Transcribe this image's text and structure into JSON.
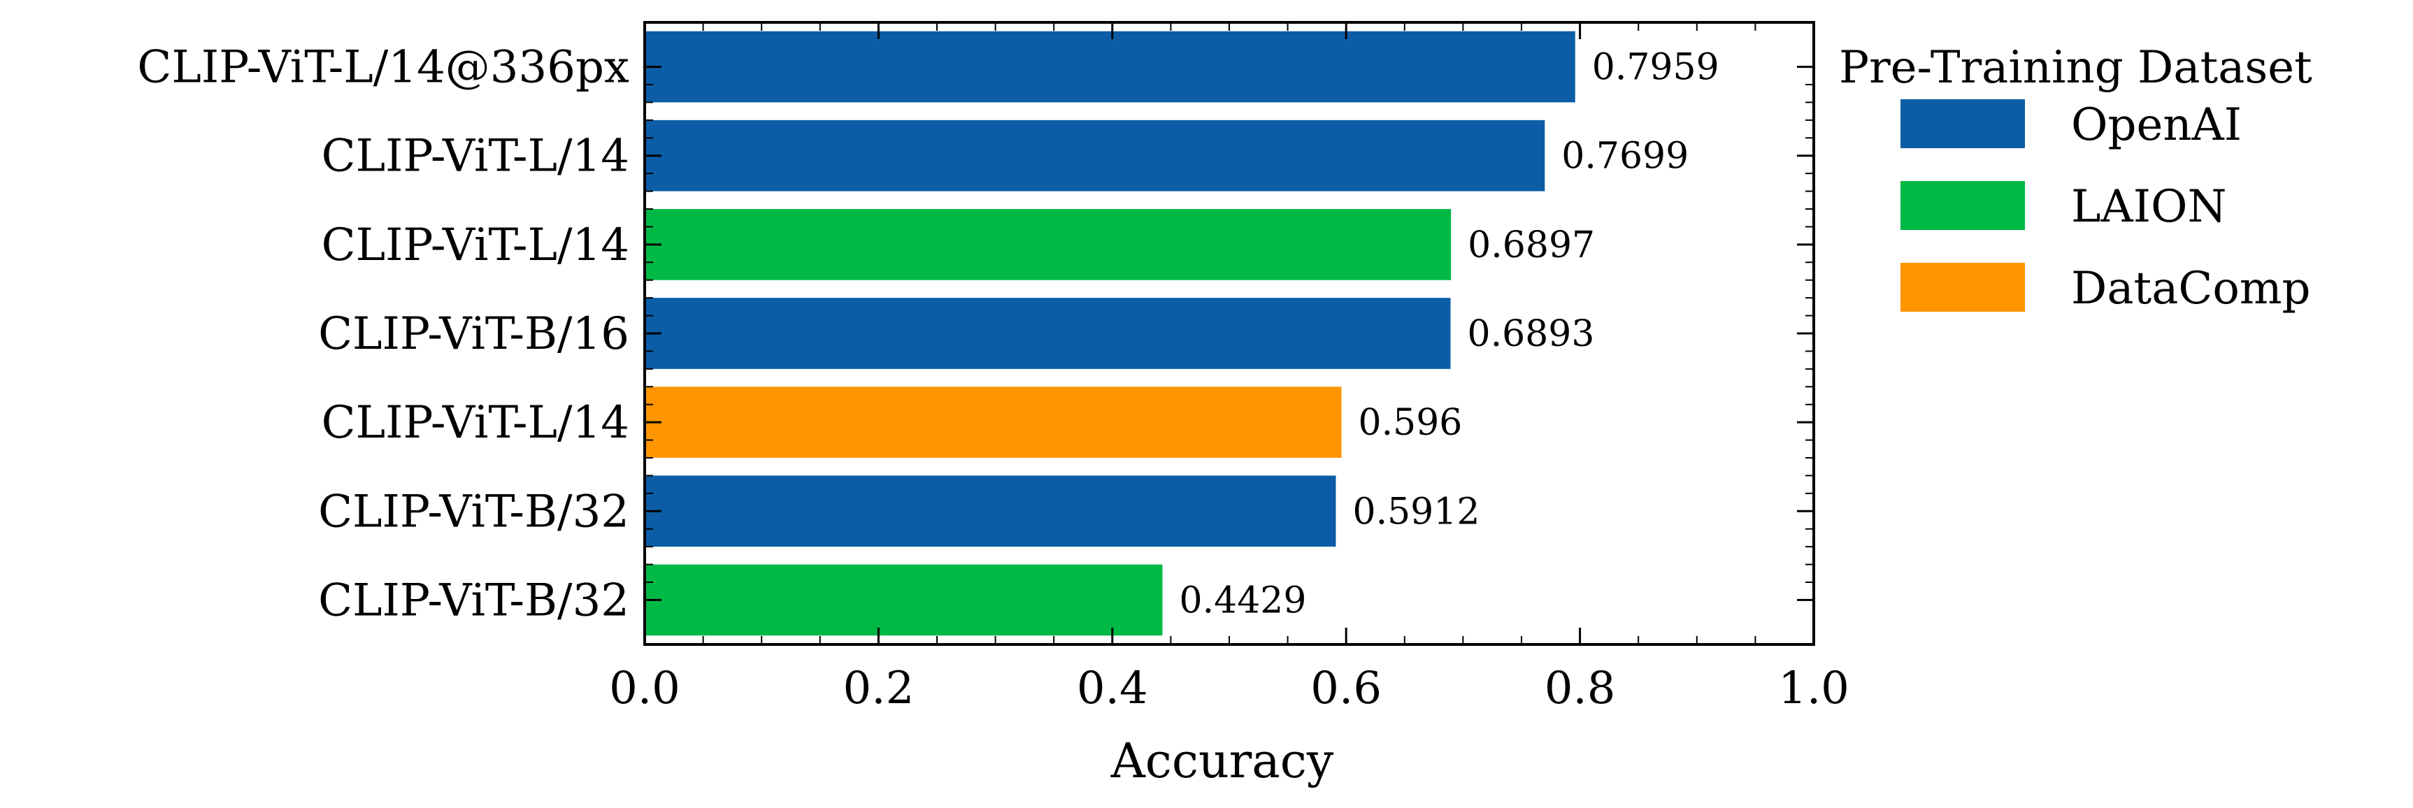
{
  "chart_data": {
    "type": "bar",
    "orientation": "horizontal",
    "title": "",
    "xlabel": "Accuracy",
    "ylabel": "",
    "xlim": [
      0,
      1
    ],
    "xticks": [
      "0.0",
      "0.2",
      "0.4",
      "0.6",
      "0.8",
      "1.0"
    ],
    "categories": [
      "CLIP-ViT-L/14@336px",
      "CLIP-ViT-L/14",
      "CLIP-ViT-L/14",
      "CLIP-ViT-B/16",
      "CLIP-ViT-L/14",
      "CLIP-ViT-B/32",
      "CLIP-ViT-B/32"
    ],
    "values": [
      0.7959,
      0.7699,
      0.6897,
      0.6893,
      0.596,
      0.5912,
      0.4429
    ],
    "value_labels": [
      "0.7959",
      "0.7699",
      "0.6897",
      "0.6893",
      "0.596",
      "0.5912",
      "0.4429"
    ],
    "groups": [
      "OpenAI",
      "OpenAI",
      "LAION",
      "OpenAI",
      "DataComp",
      "OpenAI",
      "LAION"
    ],
    "legend": {
      "title": "Pre-Training Dataset",
      "placement": "outside-right-top",
      "entries": [
        {
          "name": "OpenAI",
          "color": "#0C5DA5"
        },
        {
          "name": "LAION",
          "color": "#00B945"
        },
        {
          "name": "DataComp",
          "color": "#FF9500"
        }
      ]
    },
    "grid": false
  }
}
